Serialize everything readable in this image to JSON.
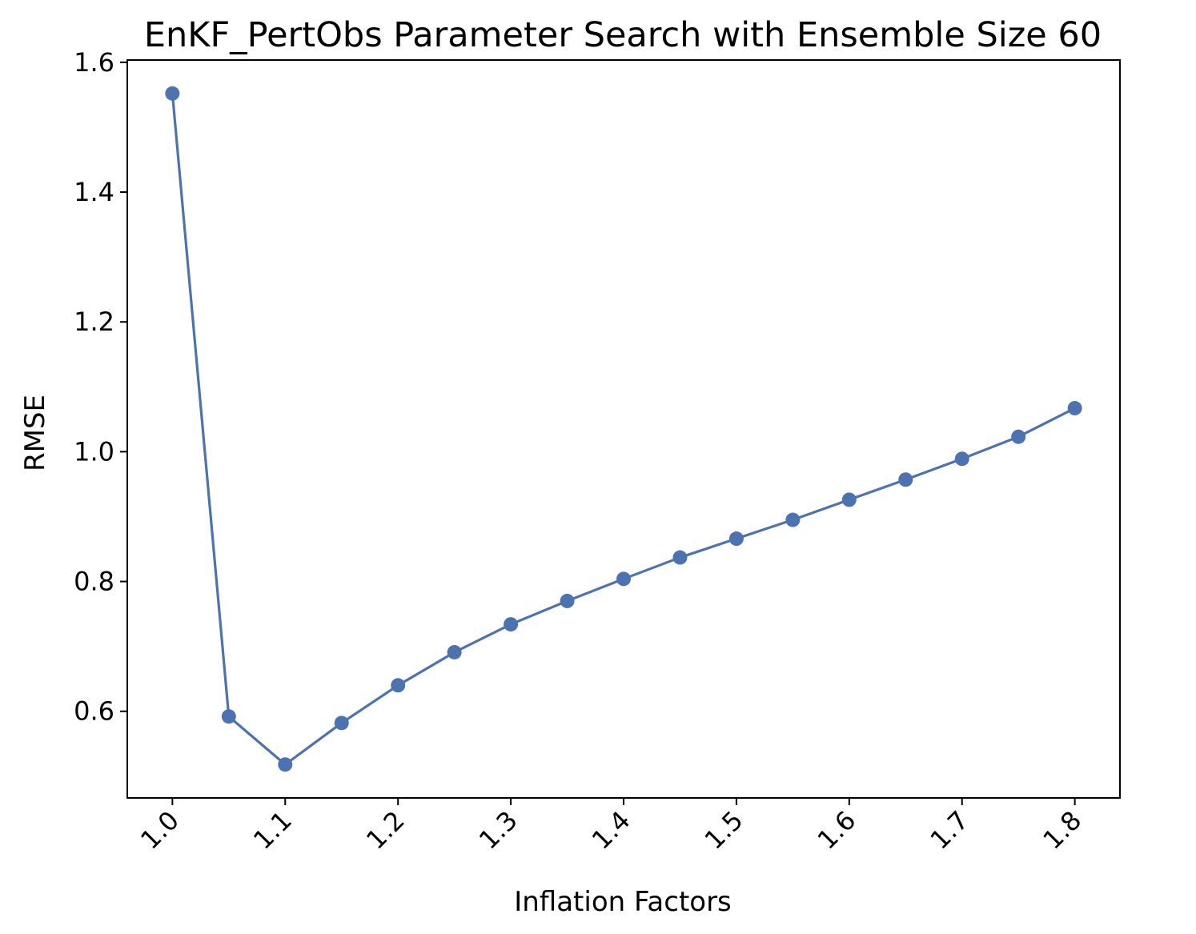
{
  "chart_data": {
    "type": "line",
    "title": "EnKF_PertObs Parameter Search with Ensemble Size 60",
    "xlabel": "Inflation Factors",
    "ylabel": "RMSE",
    "x": [
      1.0,
      1.05,
      1.1,
      1.15,
      1.2,
      1.25,
      1.3,
      1.35,
      1.4,
      1.45,
      1.5,
      1.55,
      1.6,
      1.65,
      1.7,
      1.75,
      1.8
    ],
    "series": [
      {
        "values": [
          1.552,
          0.592,
          0.518,
          0.582,
          0.64,
          0.691,
          0.734,
          0.77,
          0.804,
          0.837,
          0.866,
          0.895,
          0.926,
          0.957,
          0.989,
          1.023,
          1.067
        ],
        "color": "#4c72b0",
        "marker": "circle"
      }
    ],
    "xticks": [
      "1.0",
      "1.1",
      "1.2",
      "1.3",
      "1.4",
      "1.5",
      "1.6",
      "1.7",
      "1.8"
    ],
    "yticks": [
      "0.6",
      "0.8",
      "1.0",
      "1.2",
      "1.4",
      "1.6"
    ],
    "xlim": [
      0.96,
      1.84
    ],
    "ylim": [
      0.4665,
      1.6035
    ],
    "grid": false,
    "legend": "none"
  }
}
